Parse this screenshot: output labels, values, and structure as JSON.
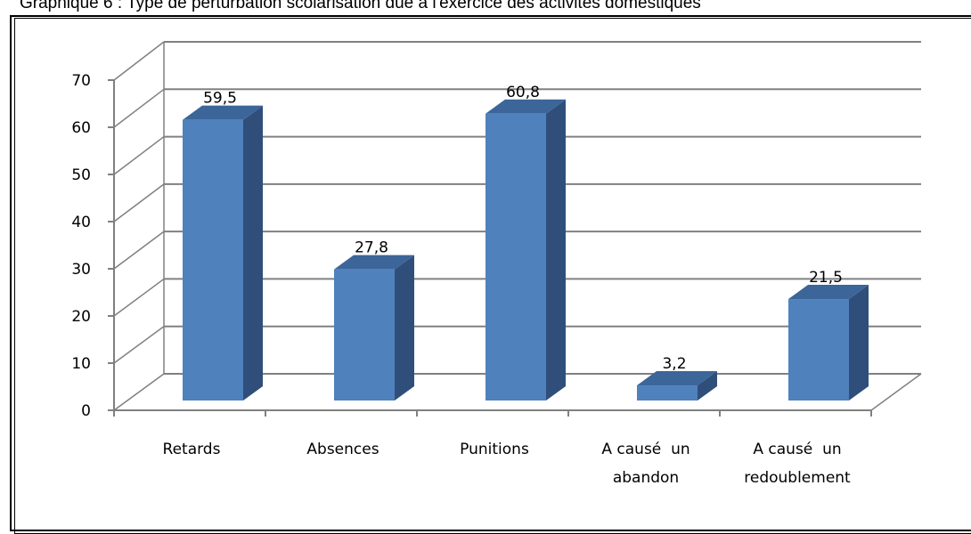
{
  "chart_data": {
    "type": "bar",
    "title": "Graphique 6 : Type de perturbation scolarisation due à l'exercice des activités domestiques",
    "xlabel": "",
    "ylabel": "",
    "ylim": [
      0,
      70
    ],
    "yticks": [
      0,
      10,
      20,
      30,
      40,
      50,
      60,
      70
    ],
    "grid": true,
    "legend": "none",
    "categories": [
      [
        "Retards"
      ],
      [
        "Absences"
      ],
      [
        "Punitions"
      ],
      [
        "A causé  un",
        "abandon"
      ],
      [
        "A causé  un",
        "redoublement"
      ]
    ],
    "values": [
      59.5,
      27.8,
      60.8,
      3.2,
      21.5
    ],
    "data_labels": [
      "59,5",
      "27,8",
      "60,8",
      "3,2",
      "21,5"
    ],
    "colors": {
      "bar_front": "#4f81bd",
      "bar_side": "#2f4f7a",
      "bar_top": "#3c6599",
      "grid": "#808080",
      "axis": "#808080"
    }
  }
}
